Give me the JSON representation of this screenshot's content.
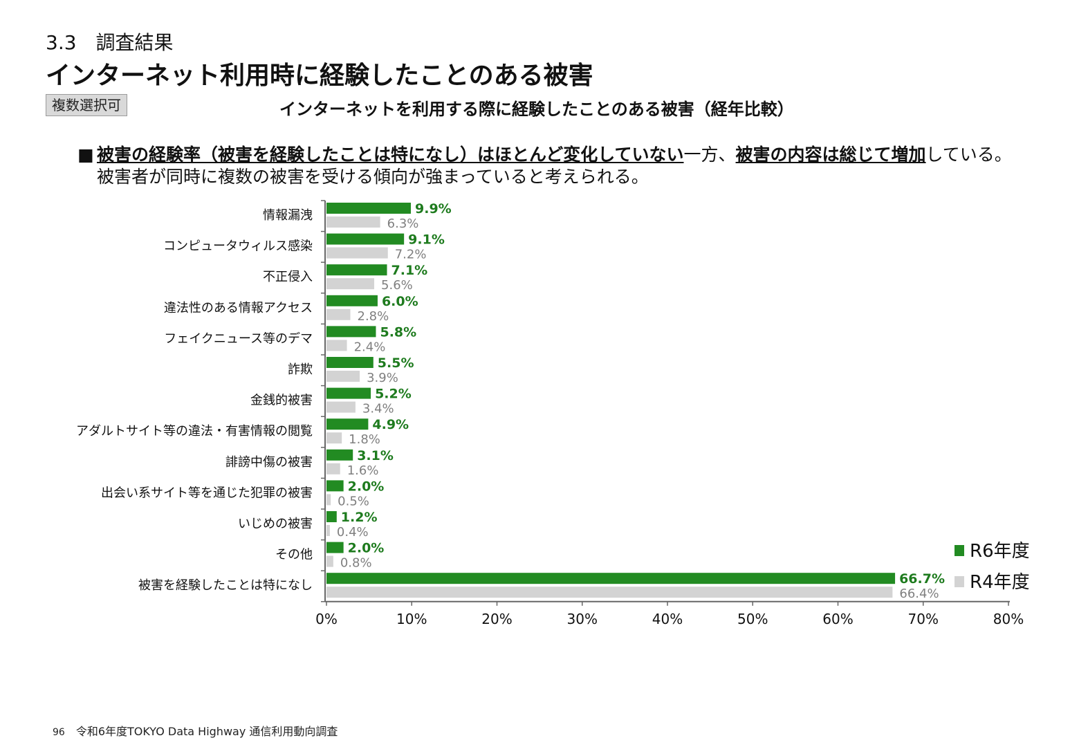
{
  "header": {
    "section": "3.3　調査結果",
    "title": "インターネット利用時に経験したことのある被害",
    "tag": "複数選択可",
    "chart_title": "インターネットを利用する際に経験したことのある被害（経年比較）"
  },
  "summary": {
    "bullet": "■",
    "line1_part1": "被害の経験率（被害を経験したことは特になし）はほとんど変化していない",
    "line1_part2": "一方、",
    "line1_part3": "被害の内容は総じて増加",
    "line1_part4": "している。",
    "line2": "被害者が同時に複数の被害を受ける傾向が強まっていると考えられる。"
  },
  "chart_data": {
    "type": "bar",
    "orientation": "horizontal",
    "categories": [
      "情報漏洩",
      "コンピュータウィルス感染",
      "不正侵入",
      "違法性のある情報アクセス",
      "フェイクニュース等のデマ",
      "詐欺",
      "金銭的被害",
      "アダルトサイト等の違法・有害情報の閲覧",
      "誹謗中傷の被害",
      "出会い系サイト等を通じた犯罪の被害",
      "いじめの被害",
      "その他",
      "被害を経験したことは特になし"
    ],
    "series": [
      {
        "name": "R6年度",
        "color": "#228b22",
        "label_color": "#1e7b1e",
        "values": [
          9.9,
          9.1,
          7.1,
          6.0,
          5.8,
          5.5,
          5.2,
          4.9,
          3.1,
          2.0,
          1.2,
          2.0,
          66.7
        ],
        "labels": [
          "9.9%",
          "9.1%",
          "7.1%",
          "6.0%",
          "5.8%",
          "5.5%",
          "5.2%",
          "4.9%",
          "3.1%",
          "2.0%",
          "1.2%",
          "2.0%",
          "66.7%"
        ]
      },
      {
        "name": "R4年度",
        "color": "#d3d3d3",
        "label_color": "#7f7f7f",
        "values": [
          6.3,
          7.2,
          5.6,
          2.8,
          2.4,
          3.9,
          3.4,
          1.8,
          1.6,
          0.5,
          0.4,
          0.8,
          66.4
        ],
        "labels": [
          "6.3%",
          "7.2%",
          "5.6%",
          "2.8%",
          "2.4%",
          "3.9%",
          "3.4%",
          "1.8%",
          "1.6%",
          "0.5%",
          "0.4%",
          "0.8%",
          "66.4%"
        ]
      }
    ],
    "xlim": [
      0,
      80
    ],
    "xticks": [
      "0%",
      "10%",
      "20%",
      "30%",
      "40%",
      "50%",
      "60%",
      "70%",
      "80%"
    ],
    "legend_position": "bottom-right",
    "grid": false
  },
  "footer": {
    "page": "96",
    "source": "令和6年度TOKYO Data Highway 通信利用動向調査"
  }
}
